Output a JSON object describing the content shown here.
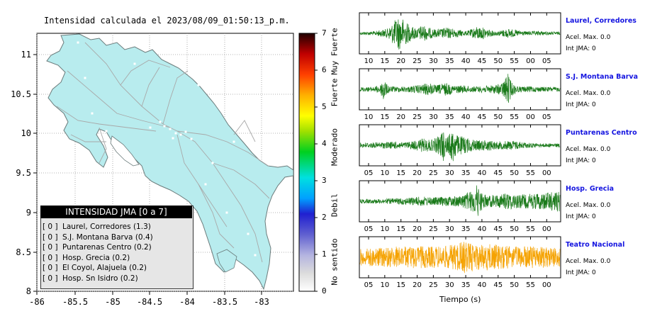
{
  "map": {
    "title": "Intensidad calculada el 2023/08/09_01:50:13_p.m.",
    "lon_ticks": [
      "-86",
      "-85.5",
      "-85",
      "-84.5",
      "-84",
      "-83.5",
      "-83"
    ],
    "lat_ticks": [
      "11",
      "10.5",
      "10",
      "9.5",
      "9",
      "8.5",
      "8"
    ],
    "land_color": "#b8ecee",
    "legend": {
      "title": "INTENSIDAD JMA [0 a 7]",
      "rows": [
        {
          "level": "[ 0 ]",
          "label": "Laurel, Corredores (1.3)"
        },
        {
          "level": "[ 0 ]",
          "label": "S.J. Montana Barva (0.4)"
        },
        {
          "level": "[ 0 ]",
          "label": "Puntarenas Centro (0.2)"
        },
        {
          "level": "[ 0 ]",
          "label": "Hosp. Grecia (0.2)"
        },
        {
          "level": "[ 0 ]",
          "label": "El Coyol, Alajuela (0.2)"
        },
        {
          "level": "[ 0 ]",
          "label": "Hosp. Sn Isidro (0.2)"
        }
      ]
    }
  },
  "colorbar": {
    "levels": [
      "0",
      "1",
      "2",
      "3",
      "4",
      "5",
      "6",
      "7"
    ],
    "categories": [
      "No sentido",
      "Debil",
      "Moderado",
      "Fuerte",
      "Muy Fuerte"
    ]
  },
  "chart_data": [
    {
      "type": "line",
      "station": "Laurel, Corredores",
      "acel_label": "Acel. Max. 0.0",
      "int_label": "Int JMA: 0",
      "color": "#1a7a1a",
      "x_ticks": [
        "10",
        "15",
        "20",
        "25",
        "30",
        "35",
        "40",
        "45",
        "50",
        "55",
        "00",
        "05"
      ],
      "envelope": [
        [
          0,
          0.08
        ],
        [
          4,
          0.1
        ],
        [
          8,
          0.25
        ],
        [
          9.5,
          0.55
        ],
        [
          11,
          0.9
        ],
        [
          12.5,
          0.75
        ],
        [
          14,
          0.5
        ],
        [
          15,
          0.35
        ],
        [
          17,
          0.3
        ],
        [
          18,
          0.45
        ],
        [
          20,
          0.3
        ],
        [
          22,
          0.2
        ],
        [
          25,
          0.3
        ],
        [
          27,
          0.25
        ],
        [
          29,
          0.18
        ],
        [
          31,
          0.12
        ],
        [
          34,
          0.35
        ],
        [
          36,
          0.3
        ],
        [
          38,
          0.15
        ],
        [
          40,
          0.12
        ],
        [
          43,
          0.25
        ],
        [
          45,
          0.18
        ],
        [
          48,
          0.1
        ],
        [
          52,
          0.12
        ],
        [
          55,
          0.08
        ],
        [
          58,
          0.08
        ]
      ]
    },
    {
      "type": "line",
      "station": "S.J. Montana Barva",
      "acel_label": "Acel. Max. 0.0",
      "int_label": "Int JMA: 0",
      "color": "#1a7a1a",
      "x_ticks": [
        "10",
        "15",
        "20",
        "25",
        "30",
        "35",
        "40",
        "45",
        "50",
        "55",
        "00",
        "05"
      ],
      "envelope": [
        [
          0,
          0.12
        ],
        [
          4,
          0.12
        ],
        [
          6,
          0.25
        ],
        [
          6.8,
          0.8
        ],
        [
          7.5,
          0.3
        ],
        [
          9,
          0.15
        ],
        [
          14,
          0.15
        ],
        [
          18,
          0.25
        ],
        [
          20,
          0.35
        ],
        [
          22,
          0.2
        ],
        [
          25,
          0.35
        ],
        [
          27,
          0.2
        ],
        [
          30,
          0.2
        ],
        [
          33,
          0.15
        ],
        [
          38,
          0.2
        ],
        [
          41,
          0.3
        ],
        [
          42,
          0.55
        ],
        [
          43,
          0.85
        ],
        [
          44,
          0.35
        ],
        [
          46,
          0.15
        ],
        [
          50,
          0.15
        ],
        [
          54,
          0.12
        ],
        [
          58,
          0.12
        ]
      ]
    },
    {
      "type": "line",
      "station": "Puntarenas Centro",
      "acel_label": "Acel. Max. 0.0",
      "int_label": "Int JMA: 0",
      "color": "#1a7a1a",
      "x_ticks": [
        "05",
        "10",
        "15",
        "20",
        "25",
        "30",
        "35",
        "40",
        "45",
        "50",
        "55",
        "00"
      ],
      "envelope": [
        [
          0,
          0.12
        ],
        [
          5,
          0.15
        ],
        [
          10,
          0.2
        ],
        [
          13,
          0.15
        ],
        [
          16,
          0.25
        ],
        [
          18,
          0.35
        ],
        [
          21,
          0.3
        ],
        [
          23,
          0.5
        ],
        [
          24,
          0.9
        ],
        [
          25,
          0.4
        ],
        [
          26,
          0.6
        ],
        [
          27,
          0.95
        ],
        [
          28,
          0.55
        ],
        [
          30,
          0.45
        ],
        [
          32,
          0.35
        ],
        [
          34,
          0.25
        ],
        [
          37,
          0.3
        ],
        [
          40,
          0.2
        ],
        [
          44,
          0.25
        ],
        [
          48,
          0.15
        ],
        [
          52,
          0.1
        ],
        [
          58,
          0.1
        ]
      ]
    },
    {
      "type": "line",
      "station": "Hosp. Grecia",
      "acel_label": "Acel. Max. 0.0",
      "int_label": "Int JMA: 0",
      "color": "#1a7a1a",
      "x_ticks": [
        "05",
        "10",
        "15",
        "20",
        "25",
        "30",
        "35",
        "40",
        "45",
        "50",
        "55",
        "00"
      ],
      "envelope": [
        [
          0,
          0.1
        ],
        [
          5,
          0.12
        ],
        [
          10,
          0.15
        ],
        [
          14,
          0.2
        ],
        [
          18,
          0.25
        ],
        [
          21,
          0.2
        ],
        [
          25,
          0.25
        ],
        [
          29,
          0.3
        ],
        [
          33,
          0.6
        ],
        [
          34,
          0.95
        ],
        [
          35,
          0.5
        ],
        [
          37,
          0.3
        ],
        [
          40,
          0.35
        ],
        [
          43,
          0.45
        ],
        [
          46,
          0.35
        ],
        [
          50,
          0.4
        ],
        [
          53,
          0.45
        ],
        [
          56,
          0.5
        ],
        [
          58,
          0.55
        ]
      ]
    },
    {
      "type": "line",
      "station": "Teatro Nacional",
      "acel_label": "Acel. Max. 0.0",
      "int_label": "Int JMA: 0",
      "color": "#f5a200",
      "x_ticks": [
        "05",
        "10",
        "15",
        "20",
        "25",
        "30",
        "35",
        "40",
        "45",
        "50",
        "55",
        "00"
      ],
      "x_label": "Tiempo (s)",
      "envelope": [
        [
          0,
          0.45
        ],
        [
          5,
          0.5
        ],
        [
          10,
          0.55
        ],
        [
          15,
          0.6
        ],
        [
          20,
          0.55
        ],
        [
          25,
          0.6
        ],
        [
          28,
          0.7
        ],
        [
          30,
          0.85
        ],
        [
          32,
          0.75
        ],
        [
          35,
          0.65
        ],
        [
          38,
          0.7
        ],
        [
          42,
          0.6
        ],
        [
          46,
          0.55
        ],
        [
          50,
          0.6
        ],
        [
          54,
          0.55
        ],
        [
          58,
          0.5
        ]
      ]
    }
  ]
}
